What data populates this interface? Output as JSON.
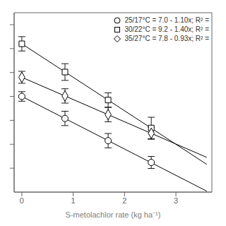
{
  "chart_data": {
    "type": "scatter",
    "xlabel": "S-metolachlor rate (kg ha⁻¹)",
    "xlim": [
      -0.15,
      3.7
    ],
    "ylim": [
      3.0,
      10.5
    ],
    "xticks": [
      0,
      1,
      2,
      3
    ],
    "yticks": [
      4,
      5,
      6,
      7,
      8,
      9,
      10
    ],
    "tick_labels": "x",
    "grid": false,
    "legend": "upper right",
    "color": "black",
    "series": [
      {
        "name": "25/17°C = 7.0 - 1.10x; R² =",
        "marker": "circle",
        "x": [
          0,
          0.84,
          1.68,
          2.52
        ],
        "values": [
          7.0,
          6.08,
          5.15,
          4.24
        ],
        "errors": [
          0.2,
          0.3,
          0.3,
          0.25
        ],
        "fit": {
          "x": [
            0,
            3.6
          ],
          "values": [
            7.0,
            3.04
          ]
        }
      },
      {
        "name": "30/22°C = 9.2 - 1.40x; R² =",
        "marker": "square",
        "x": [
          0,
          0.84,
          1.68,
          2.52
        ],
        "values": [
          9.2,
          8.02,
          6.85,
          5.68
        ],
        "errors": [
          0.3,
          0.35,
          0.3,
          0.45
        ],
        "fit": {
          "x": [
            0,
            3.6
          ],
          "values": [
            9.2,
            4.16
          ]
        }
      },
      {
        "name": "35/27°C = 7.8 - 0.93x; R² =",
        "marker": "diamond",
        "x": [
          0,
          0.84,
          1.68,
          2.52
        ],
        "values": [
          7.8,
          7.02,
          6.24,
          5.46
        ],
        "errors": [
          0.25,
          0.3,
          0.3,
          0.25
        ],
        "fit": {
          "x": [
            0,
            3.6
          ],
          "values": [
            7.8,
            4.452
          ]
        }
      }
    ]
  }
}
